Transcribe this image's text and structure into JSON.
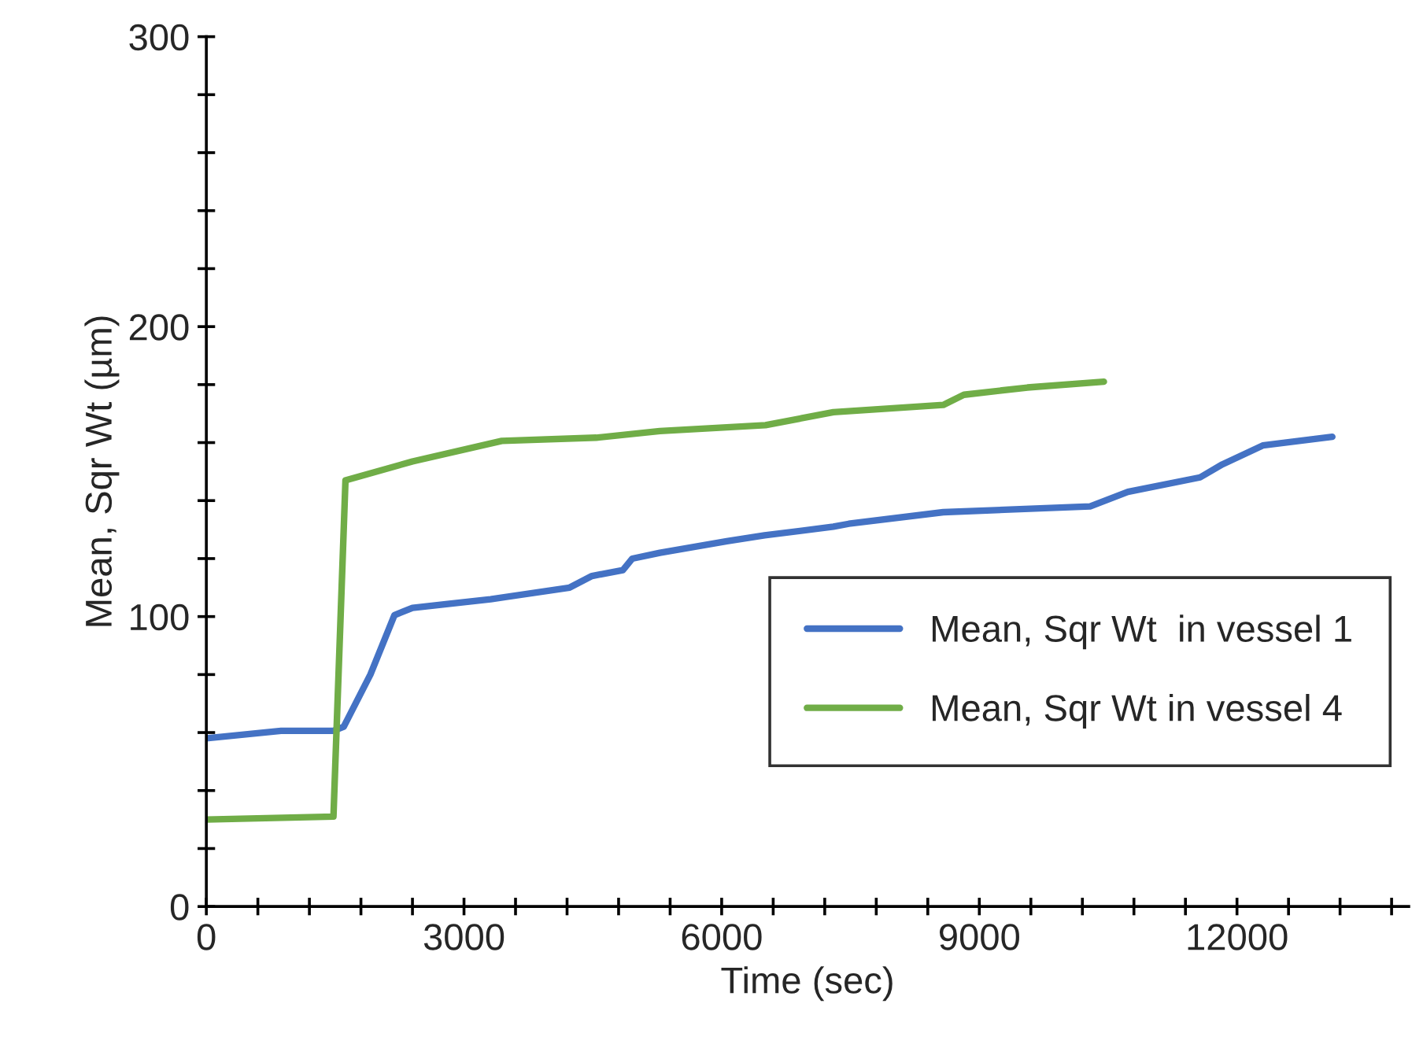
{
  "chart_data": {
    "type": "line",
    "xlabel": "Time (sec)",
    "ylabel": "Mean, Sqr Wt (µm)",
    "xlim": [
      0,
      14000
    ],
    "ylim": [
      0,
      300
    ],
    "xticks": [
      0,
      {
        "value": 600,
        "label": null
      },
      {
        "value": 1200,
        "label": null
      },
      {
        "value": 1800,
        "label": null
      },
      {
        "value": 2400,
        "label": null
      },
      3000,
      {
        "value": 3600,
        "label": null
      },
      {
        "value": 4200,
        "label": null
      },
      {
        "value": 4800,
        "label": null
      },
      {
        "value": 5400,
        "label": null
      },
      6000,
      {
        "value": 6600,
        "label": null
      },
      {
        "value": 7200,
        "label": null
      },
      {
        "value": 7800,
        "label": null
      },
      {
        "value": 8400,
        "label": null
      },
      9000,
      {
        "value": 9600,
        "label": null
      },
      {
        "value": 10200,
        "label": null
      },
      {
        "value": 10800,
        "label": null
      },
      {
        "value": 11400,
        "label": null
      },
      12000,
      {
        "value": 12600,
        "label": null
      },
      {
        "value": 13200,
        "label": null
      },
      {
        "value": 13800,
        "label": null
      }
    ],
    "yticks": [
      0,
      {
        "value": 20,
        "label": null
      },
      {
        "value": 40,
        "label": null
      },
      {
        "value": 60,
        "label": null
      },
      {
        "value": 80,
        "label": null
      },
      100,
      {
        "value": 120,
        "label": null
      },
      {
        "value": 140,
        "label": null
      },
      {
        "value": 160,
        "label": null
      },
      {
        "value": 180,
        "label": null
      },
      200,
      {
        "value": 220,
        "label": null
      },
      {
        "value": 240,
        "label": null
      },
      {
        "value": 260,
        "label": null
      },
      {
        "value": 280,
        "label": null
      },
      300
    ],
    "grid": false,
    "legend": "right",
    "marker": "none",
    "line_style": "solid",
    "series": [
      {
        "name": "Mean, Sqr Wt  in vessel 1",
        "color": "#4472c4",
        "x": [
          0,
          870,
          1480,
          1600,
          1910,
          2190,
          2400,
          3310,
          4230,
          4490,
          4850,
          4960,
          5280,
          6060,
          6500,
          7300,
          7480,
          8580,
          10290,
          10730,
          11570,
          11830,
          12300,
          13110
        ],
        "values": [
          58,
          60.6,
          60.6,
          62,
          80,
          100.5,
          103,
          106,
          110,
          114,
          116,
          120,
          122,
          126,
          128,
          131,
          132,
          136,
          138,
          143,
          148,
          152.5,
          159,
          162
        ]
      },
      {
        "name": "Mean, Sqr Wt in vessel 4",
        "color": "#70ad47",
        "x": [
          0,
          1480,
          1620,
          2400,
          3440,
          4540,
          5280,
          6510,
          7300,
          8580,
          8820,
          9560,
          10450
        ],
        "values": [
          30,
          31,
          147,
          153.5,
          160.6,
          161.7,
          164,
          166,
          170.5,
          173,
          176.5,
          179,
          181
        ]
      }
    ]
  }
}
